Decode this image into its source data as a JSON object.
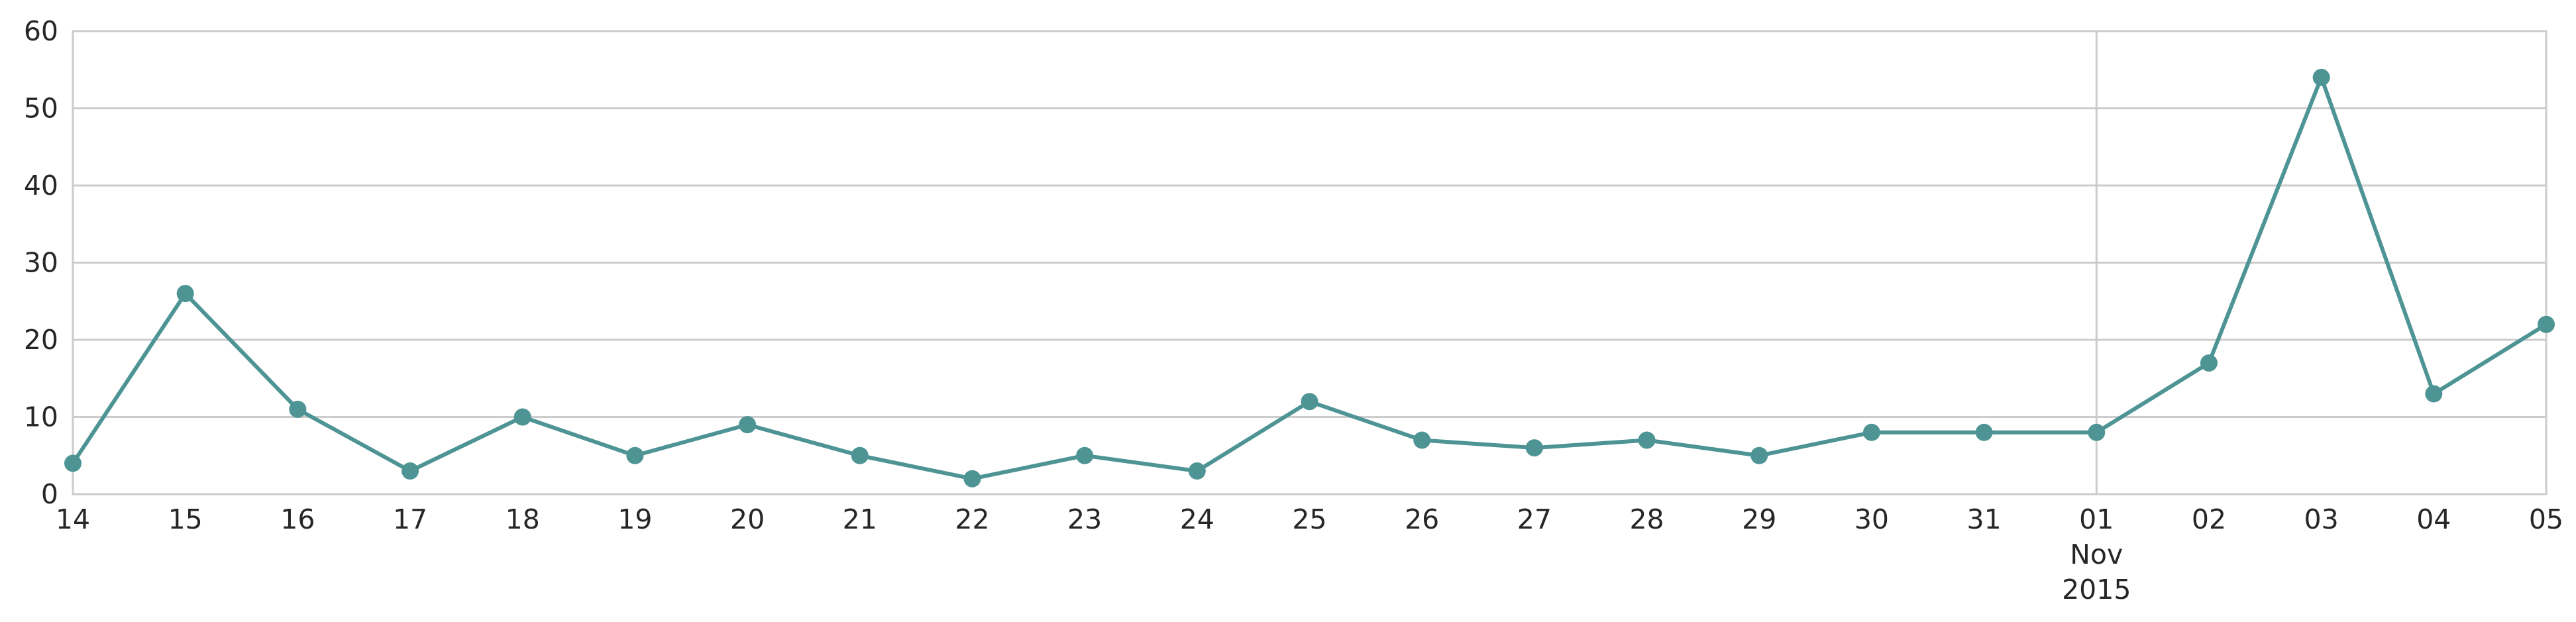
{
  "chart_data": {
    "type": "line",
    "title": "",
    "xlabel": "",
    "ylabel": "",
    "ylim": [
      0,
      60
    ],
    "yticks": [
      0,
      10,
      20,
      30,
      40,
      50,
      60
    ],
    "grid": true,
    "x": [
      "2015-10-14",
      "2015-10-15",
      "2015-10-16",
      "2015-10-17",
      "2015-10-18",
      "2015-10-19",
      "2015-10-20",
      "2015-10-21",
      "2015-10-22",
      "2015-10-23",
      "2015-10-24",
      "2015-10-25",
      "2015-10-26",
      "2015-10-27",
      "2015-10-28",
      "2015-10-29",
      "2015-10-30",
      "2015-10-31",
      "2015-11-01",
      "2015-11-02",
      "2015-11-03",
      "2015-11-04",
      "2015-11-05"
    ],
    "xtick_labels": [
      "14",
      "15",
      "16",
      "17",
      "18",
      "19",
      "20",
      "21",
      "22",
      "23",
      "24",
      "25",
      "26",
      "27",
      "28",
      "29",
      "30",
      "31",
      "01",
      "02",
      "03",
      "04",
      "05"
    ],
    "major_tick": {
      "label": "01",
      "month": "Nov",
      "year": "2015"
    },
    "series": [
      {
        "values": [
          4,
          26,
          11,
          3,
          10,
          5,
          9,
          5,
          2,
          5,
          3,
          12,
          7,
          6,
          7,
          5,
          8,
          8,
          8,
          17,
          54,
          13,
          22
        ]
      }
    ],
    "colors": {
      "series": "#4e9494",
      "grid": "#cccccc",
      "text": "#262626"
    }
  }
}
